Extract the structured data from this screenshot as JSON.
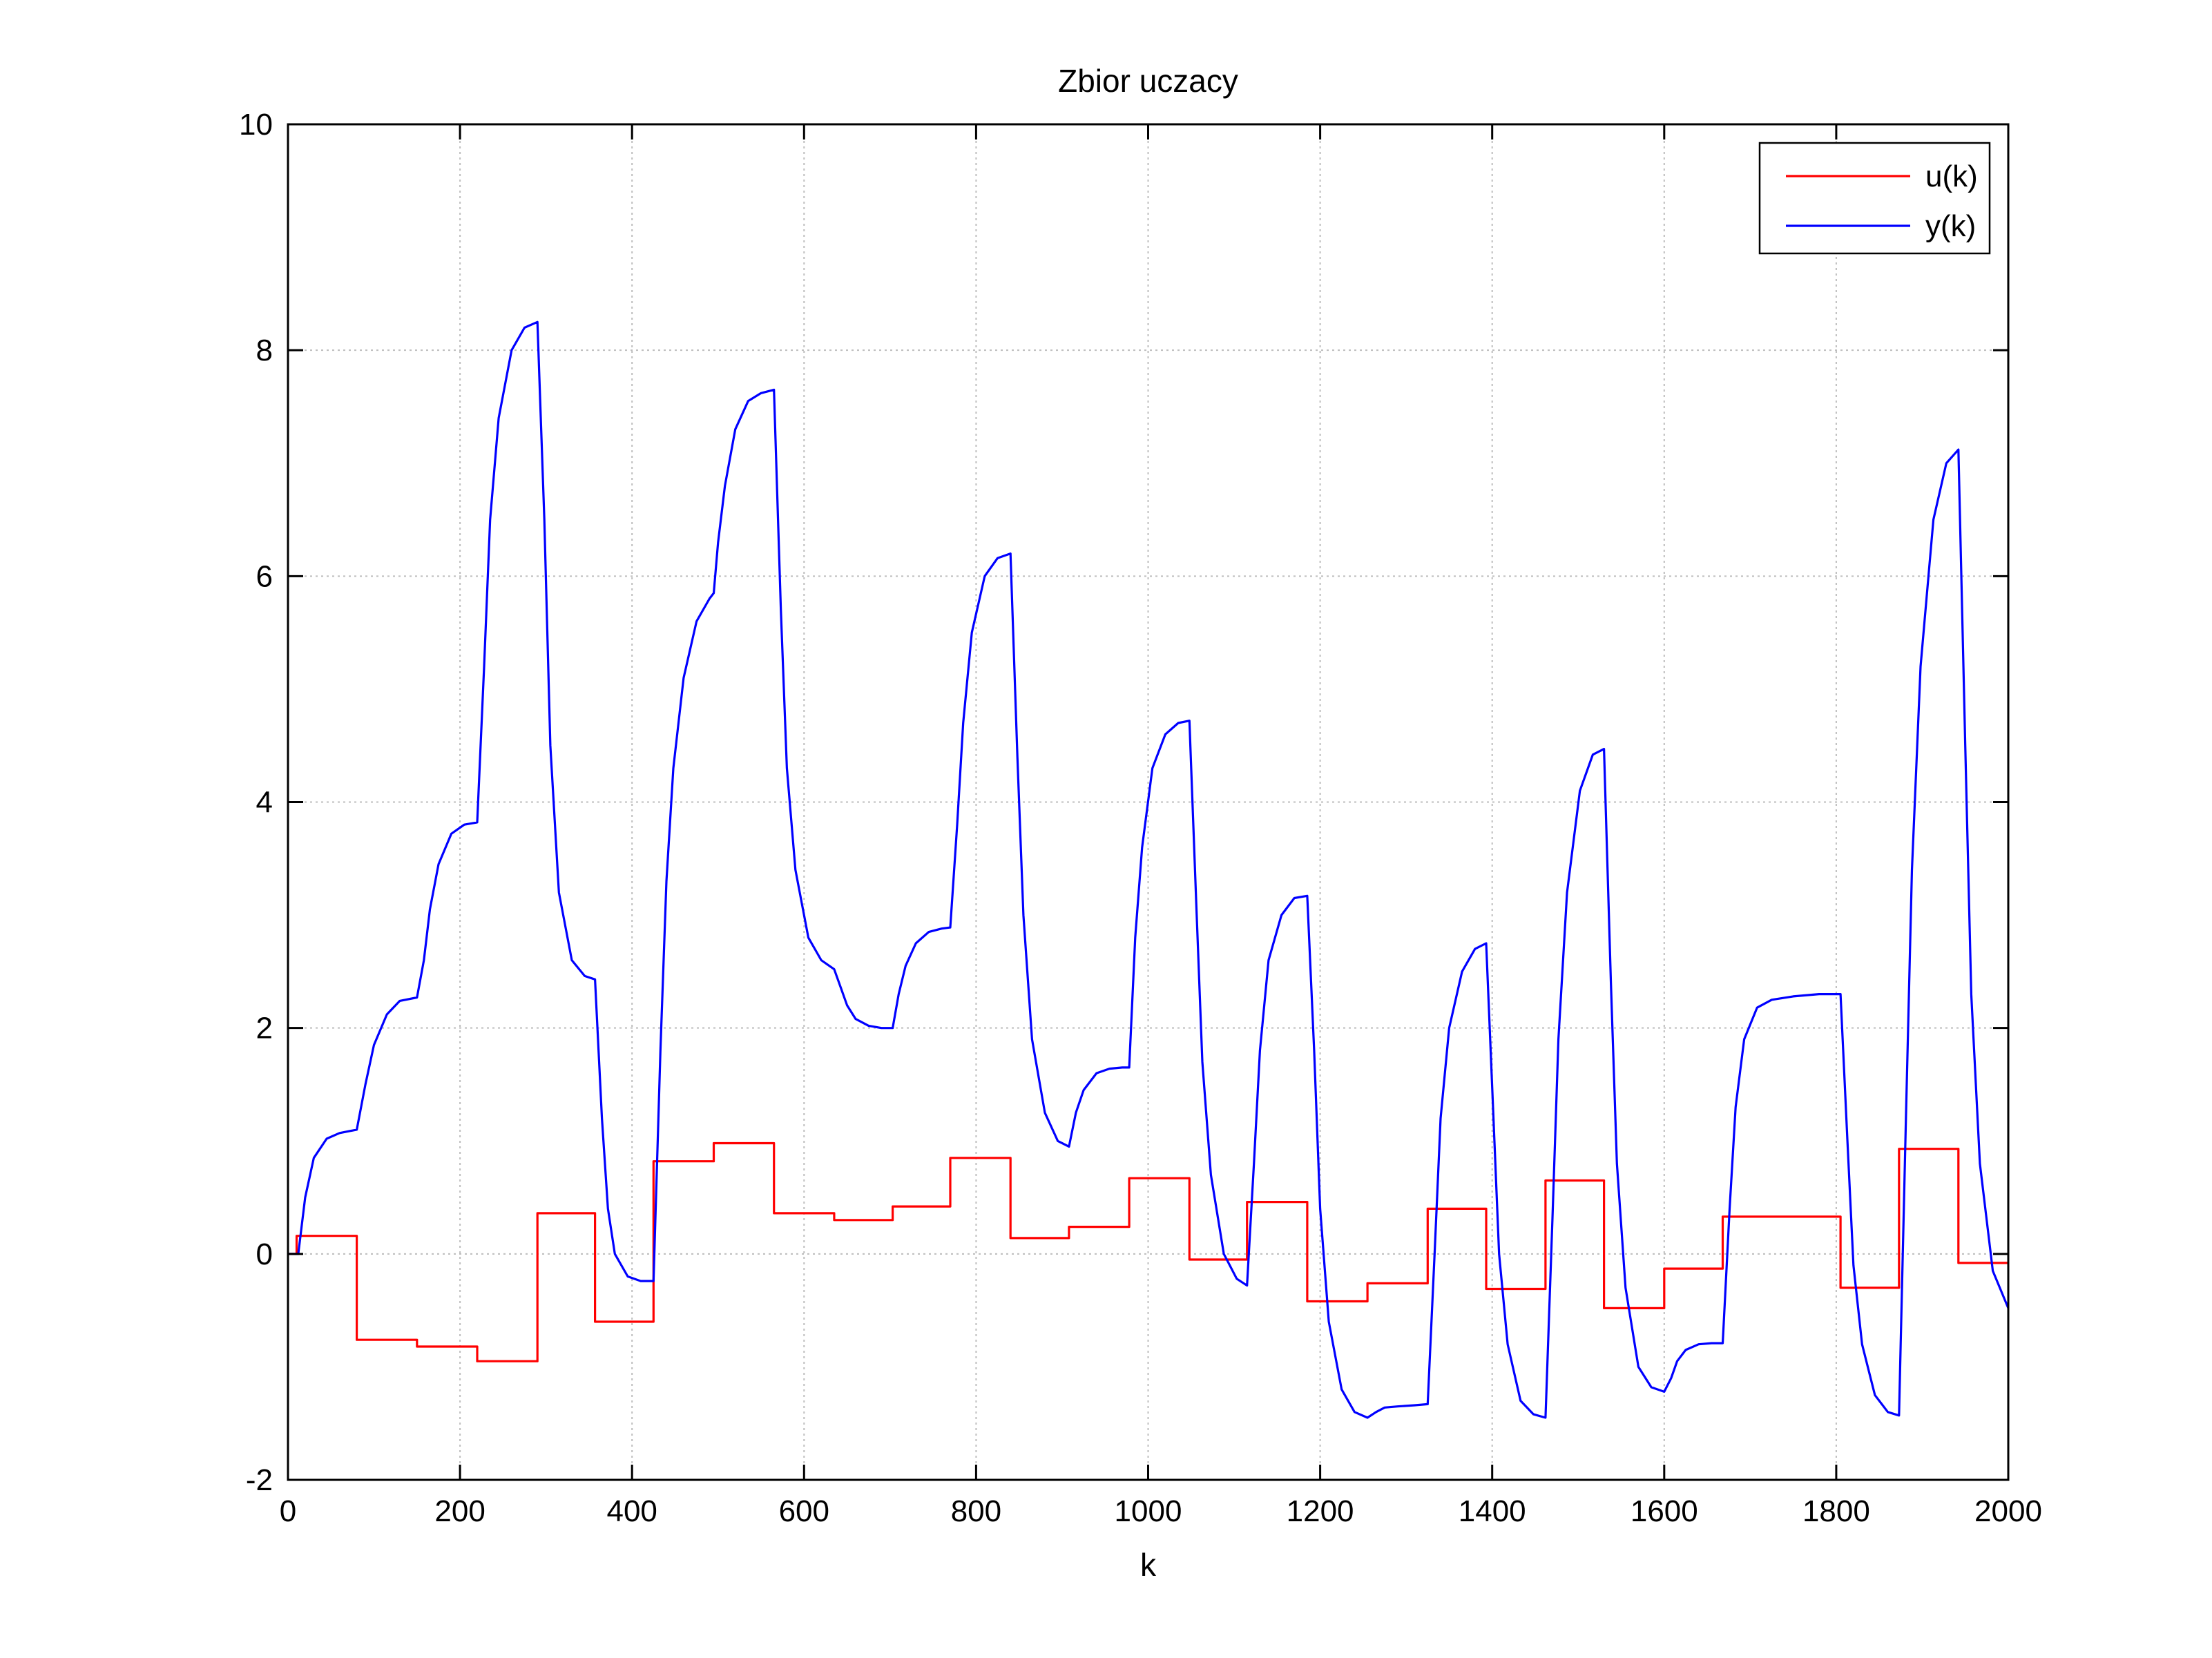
{
  "chart_data": {
    "type": "line",
    "title": "Zbior uczacy",
    "xlabel": "k",
    "ylabel": "",
    "xlim": [
      0,
      2000
    ],
    "ylim": [
      -2,
      10
    ],
    "xticks": [
      0,
      200,
      400,
      600,
      800,
      1000,
      1200,
      1400,
      1600,
      1800,
      2000
    ],
    "yticks": [
      -2,
      0,
      2,
      4,
      6,
      8,
      10
    ],
    "xtick_labels": [
      "0",
      "200",
      "400",
      "600",
      "800",
      "1000",
      "1200",
      "1400",
      "1600",
      "1800",
      "2000"
    ],
    "ytick_labels": [
      "-2",
      "0",
      "2",
      "4",
      "6",
      "8",
      "10"
    ],
    "grid": true,
    "legend_position": "top-right",
    "series": [
      {
        "name": "u(k)",
        "color": "#ff0000",
        "style": "step",
        "segments": [
          {
            "from": 0,
            "to": 10,
            "value": 0
          },
          {
            "from": 10,
            "to": 80,
            "value": 0.16
          },
          {
            "from": 80,
            "to": 150,
            "value": -0.76
          },
          {
            "from": 150,
            "to": 220,
            "value": -0.82
          },
          {
            "from": 220,
            "to": 290,
            "value": -0.95
          },
          {
            "from": 290,
            "to": 357,
            "value": 0.36
          },
          {
            "from": 357,
            "to": 425,
            "value": -0.6
          },
          {
            "from": 425,
            "to": 495,
            "value": 0.82
          },
          {
            "from": 495,
            "to": 565,
            "value": 0.98
          },
          {
            "from": 565,
            "to": 635,
            "value": 0.36
          },
          {
            "from": 635,
            "to": 703,
            "value": 0.3
          },
          {
            "from": 703,
            "to": 770,
            "value": 0.42
          },
          {
            "from": 770,
            "to": 840,
            "value": 0.85
          },
          {
            "from": 840,
            "to": 908,
            "value": 0.14
          },
          {
            "from": 908,
            "to": 978,
            "value": 0.24
          },
          {
            "from": 978,
            "to": 1048,
            "value": 0.67
          },
          {
            "from": 1048,
            "to": 1115,
            "value": -0.05
          },
          {
            "from": 1115,
            "to": 1185,
            "value": 0.46
          },
          {
            "from": 1185,
            "to": 1255,
            "value": -0.42
          },
          {
            "from": 1255,
            "to": 1325,
            "value": -0.26
          },
          {
            "from": 1325,
            "to": 1393,
            "value": 0.4
          },
          {
            "from": 1393,
            "to": 1462,
            "value": -0.31
          },
          {
            "from": 1462,
            "to": 1530,
            "value": 0.65
          },
          {
            "from": 1530,
            "to": 1600,
            "value": -0.48
          },
          {
            "from": 1600,
            "to": 1668,
            "value": -0.13
          },
          {
            "from": 1668,
            "to": 1805,
            "value": 0.33
          },
          {
            "from": 1805,
            "to": 1873,
            "value": -0.3
          },
          {
            "from": 1873,
            "to": 1942,
            "value": 0.93
          },
          {
            "from": 1942,
            "to": 2000,
            "value": -0.08
          }
        ]
      },
      {
        "name": "y(k)",
        "color": "#0000ff",
        "style": "line",
        "x": [
          0,
          12,
          20,
          30,
          45,
          60,
          80,
          90,
          100,
          115,
          130,
          150,
          158,
          165,
          175,
          190,
          205,
          220,
          228,
          235,
          245,
          260,
          275,
          290,
          298,
          305,
          315,
          330,
          345,
          357,
          365,
          372,
          380,
          395,
          410,
          425,
          433,
          440,
          448,
          460,
          475,
          490,
          495,
          500,
          508,
          520,
          535,
          550,
          565,
          573,
          580,
          590,
          605,
          620,
          635,
          643,
          650,
          660,
          675,
          690,
          703,
          710,
          718,
          730,
          745,
          760,
          770,
          778,
          785,
          795,
          810,
          825,
          840,
          848,
          855,
          865,
          880,
          895,
          908,
          916,
          925,
          940,
          955,
          970,
          978,
          985,
          993,
          1005,
          1020,
          1035,
          1048,
          1056,
          1063,
          1073,
          1088,
          1103,
          1115,
          1123,
          1130,
          1140,
          1155,
          1170,
          1185,
          1193,
          1200,
          1210,
          1225,
          1240,
          1255,
          1265,
          1275,
          1290,
          1310,
          1325,
          1333,
          1340,
          1350,
          1365,
          1380,
          1393,
          1401,
          1408,
          1418,
          1433,
          1448,
          1462,
          1470,
          1477,
          1487,
          1502,
          1517,
          1530,
          1538,
          1545,
          1555,
          1570,
          1585,
          1600,
          1608,
          1615,
          1625,
          1640,
          1655,
          1668,
          1676,
          1683,
          1693,
          1708,
          1725,
          1750,
          1780,
          1805,
          1813,
          1820,
          1830,
          1845,
          1860,
          1873,
          1881,
          1888,
          1898,
          1913,
          1928,
          1942,
          1950,
          1957,
          1967,
          1982,
          2000
        ],
        "y": [
          0,
          0,
          0.5,
          0.85,
          1.02,
          1.07,
          1.1,
          1.5,
          1.85,
          2.12,
          2.24,
          2.27,
          2.6,
          3.05,
          3.45,
          3.72,
          3.8,
          3.82,
          5.2,
          6.5,
          7.4,
          8.0,
          8.2,
          8.25,
          6.5,
          4.5,
          3.2,
          2.6,
          2.46,
          2.43,
          1.2,
          0.4,
          0.0,
          -0.2,
          -0.24,
          -0.24,
          1.8,
          3.3,
          4.3,
          5.1,
          5.6,
          5.8,
          5.85,
          6.3,
          6.8,
          7.3,
          7.55,
          7.62,
          7.65,
          5.7,
          4.3,
          3.4,
          2.8,
          2.6,
          2.52,
          2.35,
          2.2,
          2.08,
          2.02,
          2.0,
          2.0,
          2.3,
          2.55,
          2.75,
          2.85,
          2.88,
          2.89,
          3.8,
          4.7,
          5.5,
          6.0,
          6.16,
          6.2,
          4.4,
          3.0,
          1.9,
          1.25,
          1.0,
          0.95,
          1.25,
          1.45,
          1.6,
          1.64,
          1.65,
          1.65,
          2.8,
          3.6,
          4.3,
          4.6,
          4.7,
          4.72,
          3.1,
          1.7,
          0.7,
          0.0,
          -0.22,
          -0.28,
          0.8,
          1.8,
          2.6,
          3.0,
          3.15,
          3.17,
          1.8,
          0.4,
          -0.6,
          -1.2,
          -1.4,
          -1.45,
          -1.4,
          -1.36,
          -1.35,
          -1.34,
          -1.33,
          0.0,
          1.2,
          2.0,
          2.5,
          2.7,
          2.75,
          1.3,
          0.0,
          -0.8,
          -1.3,
          -1.42,
          -1.45,
          0.3,
          1.9,
          3.2,
          4.1,
          4.42,
          4.47,
          2.4,
          0.8,
          -0.3,
          -1.0,
          -1.18,
          -1.22,
          -1.1,
          -0.95,
          -0.85,
          -0.8,
          -0.79,
          -0.79,
          0.4,
          1.3,
          1.9,
          2.18,
          2.25,
          2.28,
          2.3,
          2.3,
          1.0,
          -0.1,
          -0.8,
          -1.25,
          -1.4,
          -1.43,
          1.2,
          3.4,
          5.2,
          6.5,
          7.0,
          7.12,
          4.5,
          2.3,
          0.8,
          -0.15,
          -0.48
        ]
      }
    ]
  }
}
